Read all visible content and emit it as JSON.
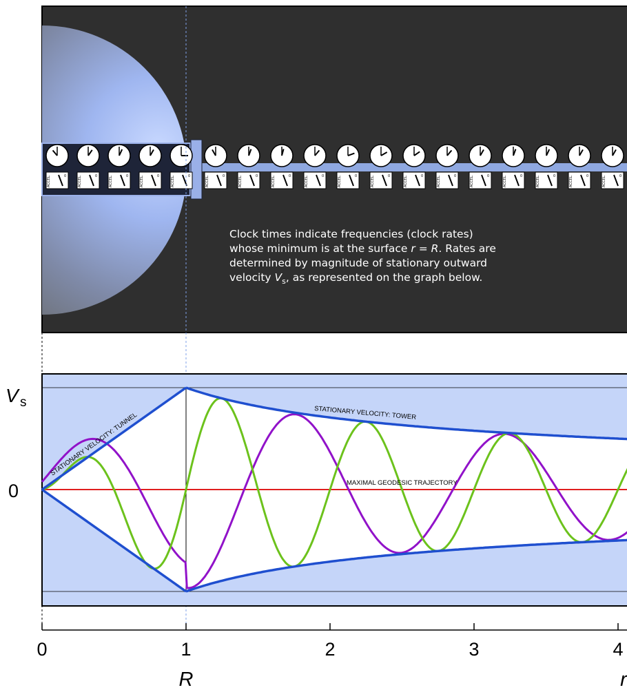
{
  "caption": {
    "line1": "Clock times indicate frequencies (clock rates)",
    "line2_a": "whose minimum is at the surface ",
    "line2_r": "r",
    "line2_b": " = ",
    "line2_R": "R",
    "line2_c": ".  Rates are",
    "line3": "determined by magnitude of stationary outward",
    "line4_a": "velocity ",
    "line4_V": "V",
    "line4_s": "s",
    "line4_b": ", as represented on the graph below."
  },
  "gauge_label": "ACCEL.",
  "gauge_zero": "0",
  "gauge_plus": "+",
  "gauge_minus": "–",
  "y_axis": {
    "label_V": "V",
    "label_s": "s",
    "zero_label": "0"
  },
  "x_axis": {
    "ticks": [
      "0",
      "1",
      "2",
      "3",
      "4"
    ],
    "R_label": "R",
    "r_label": "r"
  },
  "curve_labels": {
    "tunnel": "STATIONARY VELOCITY: TUNNEL",
    "tower": "STATIONARY VELOCITY: TOWER",
    "geodesic": "MAXIMAL GEODESIC TRAJECTORY"
  },
  "colors": {
    "panel_bg": "#2f2f2f",
    "graph_bg": "#c5d5f9",
    "envelope": "#1f4fcf",
    "green": "#6cc21c",
    "purple": "#9112c9",
    "red": "#e01e1e"
  },
  "chart_data": {
    "type": "line",
    "xlim": [
      0,
      4.1
    ],
    "ylim": [
      -1,
      1
    ],
    "series": [
      {
        "name": "STATIONARY VELOCITY: TUNNEL",
        "x": [
          0,
          1
        ],
        "y": [
          0,
          1
        ]
      },
      {
        "name": "STATIONARY VELOCITY: TOWER",
        "x": [
          1,
          1.5,
          2,
          2.5,
          3,
          3.5,
          4,
          4.1
        ],
        "y": [
          1,
          0.82,
          0.71,
          0.63,
          0.58,
          0.54,
          0.5,
          0.5
        ]
      },
      {
        "name": "MAXIMAL GEODESIC TRAJECTORY",
        "x": [
          0,
          4.1
        ],
        "y": [
          0,
          0
        ]
      }
    ]
  }
}
